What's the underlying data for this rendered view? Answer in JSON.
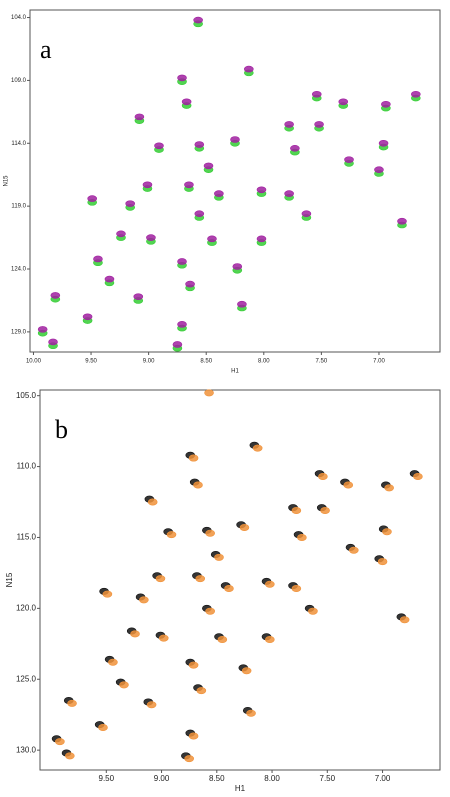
{
  "chart_data": [
    {
      "type": "scatter",
      "label": "a",
      "xlabel": "H1",
      "ylabel": "N15",
      "xlim": [
        10.03,
        6.47
      ],
      "ylim": [
        103.4,
        130.6
      ],
      "xticks": [
        {
          "value": 10,
          "label": "10.00"
        },
        {
          "value": 9.5,
          "label": "9.50"
        },
        {
          "value": 9,
          "label": "9.00"
        },
        {
          "value": 8.5,
          "label": "8.50"
        },
        {
          "value": 8,
          "label": "8.00"
        },
        {
          "value": 7.5,
          "label": "7.50"
        },
        {
          "value": 7,
          "label": "7.00"
        }
      ],
      "yticks": [
        {
          "value": 104,
          "label": "104.0"
        },
        {
          "value": 109,
          "label": "109.0"
        },
        {
          "value": 114,
          "label": "114.0"
        },
        {
          "value": 119,
          "label": "119.0"
        },
        {
          "value": 124,
          "label": "124.0"
        },
        {
          "value": 129,
          "label": "129.0"
        }
      ],
      "series": [
        {
          "color": "#33cc33",
          "x": [
            8.57,
            8.71,
            8.13,
            8.67,
            9.08,
            7.54,
            7.31,
            6.94,
            6.68,
            7.78,
            7.52,
            8.25,
            8.56,
            8.91,
            7.73,
            6.96,
            7.26,
            7.0,
            8.48,
            9.01,
            8.65,
            8.39,
            8.02,
            7.78,
            9.49,
            9.16,
            8.56,
            7.63,
            6.8,
            9.24,
            8.98,
            8.45,
            8.02,
            9.44,
            8.71,
            8.23,
            9.34,
            8.64,
            9.81,
            9.09,
            8.19,
            9.53,
            8.71,
            9.92,
            9.83,
            8.75
          ],
          "values": [
            104.5,
            109.1,
            108.4,
            111.0,
            112.2,
            110.4,
            111.0,
            111.2,
            110.4,
            112.8,
            112.8,
            114.0,
            114.4,
            114.5,
            114.7,
            114.3,
            115.6,
            116.4,
            116.1,
            117.6,
            117.6,
            118.3,
            118.0,
            118.3,
            118.7,
            119.1,
            119.9,
            119.9,
            120.5,
            121.5,
            121.8,
            121.9,
            121.9,
            123.5,
            123.7,
            124.1,
            125.1,
            125.5,
            126.4,
            126.5,
            127.1,
            128.1,
            128.7,
            129.1,
            130.1,
            130.3
          ]
        },
        {
          "color": "#a020a0",
          "x": [
            8.57,
            8.71,
            8.13,
            8.67,
            9.08,
            7.54,
            7.31,
            6.94,
            6.68,
            7.78,
            7.52,
            8.25,
            8.56,
            8.91,
            7.73,
            6.96,
            7.26,
            7.0,
            8.48,
            9.01,
            8.65,
            8.39,
            8.02,
            7.78,
            9.49,
            9.16,
            8.56,
            7.63,
            6.8,
            9.24,
            8.98,
            8.45,
            8.02,
            9.44,
            8.71,
            8.23,
            9.34,
            8.64,
            9.81,
            9.09,
            8.19,
            9.53,
            8.71,
            9.92,
            9.83,
            8.75
          ],
          "values": [
            104.2,
            108.8,
            108.1,
            110.7,
            111.9,
            110.1,
            110.7,
            110.9,
            110.1,
            112.5,
            112.5,
            113.7,
            114.1,
            114.2,
            114.4,
            114.0,
            115.3,
            116.1,
            115.8,
            117.3,
            117.3,
            118.0,
            117.7,
            118.0,
            118.4,
            118.8,
            119.6,
            119.6,
            120.2,
            121.2,
            121.5,
            121.6,
            121.6,
            123.2,
            123.4,
            123.8,
            124.8,
            125.2,
            126.1,
            126.2,
            126.8,
            127.8,
            128.4,
            128.8,
            129.8,
            130.0
          ]
        }
      ]
    },
    {
      "type": "scatter",
      "label": "b",
      "xlabel": "H1",
      "ylabel": "N15",
      "xlim": [
        10.1,
        6.48
      ],
      "ylim": [
        104.6,
        131.4
      ],
      "xticks": [
        {
          "value": 9.5,
          "label": "9.50"
        },
        {
          "value": 9,
          "label": "9.00"
        },
        {
          "value": 8.5,
          "label": "8.50"
        },
        {
          "value": 8,
          "label": "8.00"
        },
        {
          "value": 7.5,
          "label": "7.50"
        },
        {
          "value": 7,
          "label": "7.00"
        }
      ],
      "yticks": [
        {
          "value": 105,
          "label": "105.0"
        },
        {
          "value": 110,
          "label": "110.0"
        },
        {
          "value": 115,
          "label": "115.0"
        },
        {
          "value": 120,
          "label": "120.0"
        },
        {
          "value": 125,
          "label": "125.0"
        },
        {
          "value": 130,
          "label": "130.0"
        }
      ],
      "series": [
        {
          "color": "#111111",
          "x": [
            8.74,
            8.16,
            8.7,
            9.11,
            7.57,
            7.34,
            6.97,
            6.71,
            7.81,
            7.55,
            8.28,
            8.59,
            8.94,
            7.76,
            6.99,
            7.29,
            7.03,
            8.51,
            9.04,
            8.68,
            8.42,
            8.05,
            7.81,
            9.52,
            9.19,
            8.59,
            7.66,
            6.83,
            9.27,
            9.01,
            8.48,
            8.05,
            9.47,
            8.74,
            8.26,
            9.37,
            8.67,
            9.84,
            9.12,
            8.22,
            9.56,
            8.74,
            9.95,
            9.86,
            8.78
          ],
          "values": [
            109.2,
            108.5,
            111.1,
            112.3,
            110.5,
            111.1,
            111.3,
            110.5,
            112.9,
            112.9,
            114.1,
            114.5,
            114.6,
            114.8,
            114.4,
            115.7,
            116.5,
            116.2,
            117.7,
            117.7,
            118.4,
            118.1,
            118.4,
            118.8,
            119.2,
            120.0,
            120.0,
            120.6,
            121.6,
            121.9,
            122.0,
            122.0,
            123.6,
            123.8,
            124.2,
            125.2,
            125.6,
            126.5,
            126.6,
            127.2,
            128.2,
            128.8,
            129.2,
            130.2,
            130.4
          ]
        },
        {
          "color": "#f0923a",
          "x": [
            8.57,
            8.71,
            8.13,
            8.67,
            9.08,
            7.54,
            7.31,
            6.94,
            6.68,
            7.78,
            7.52,
            8.25,
            8.56,
            8.91,
            7.73,
            6.96,
            7.26,
            7.0,
            8.48,
            9.01,
            8.65,
            8.39,
            8.02,
            7.78,
            9.49,
            9.16,
            8.56,
            7.63,
            6.8,
            9.24,
            8.98,
            8.45,
            8.02,
            9.44,
            8.71,
            8.23,
            9.34,
            8.64,
            9.81,
            9.09,
            8.19,
            9.53,
            8.71,
            9.92,
            9.83,
            8.75
          ],
          "values": [
            104.8,
            109.4,
            108.7,
            111.3,
            112.5,
            110.7,
            111.3,
            111.5,
            110.7,
            113.1,
            113.1,
            114.3,
            114.7,
            114.8,
            115.0,
            114.6,
            115.9,
            116.7,
            116.4,
            117.9,
            117.9,
            118.6,
            118.3,
            118.6,
            119.0,
            119.4,
            120.2,
            120.2,
            120.8,
            121.8,
            122.1,
            122.2,
            122.2,
            123.8,
            124.0,
            124.4,
            125.4,
            125.8,
            126.7,
            126.8,
            127.4,
            128.4,
            129.0,
            129.4,
            130.4,
            130.6
          ]
        }
      ]
    }
  ]
}
